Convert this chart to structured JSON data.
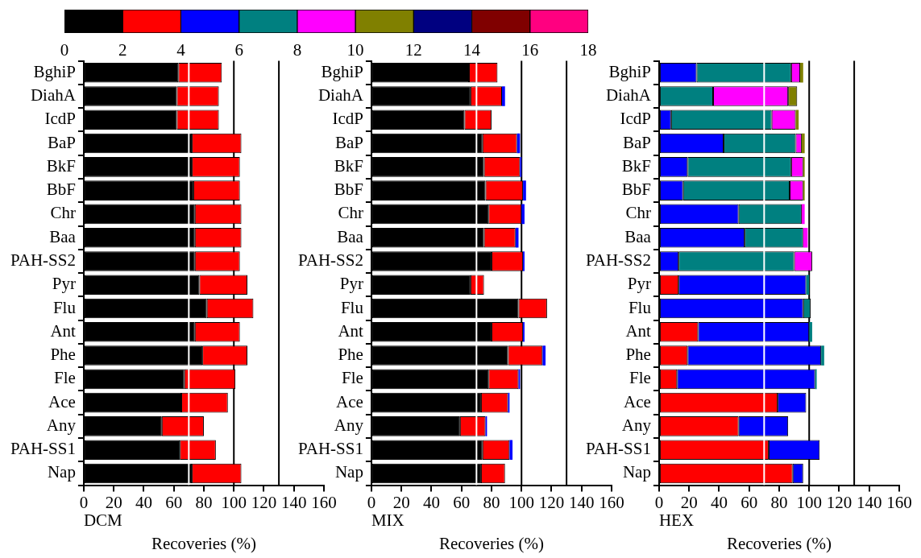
{
  "chart_data": [
    {
      "type": "bar",
      "orientation": "horizontal",
      "stacked": true,
      "categories": [
        null
      ],
      "xlim": [
        0,
        18
      ],
      "xticks": [
        0,
        2,
        4,
        6,
        8,
        10,
        12,
        14,
        16,
        18
      ],
      "tick_labels": "x",
      "series": [
        {
          "color": "#000000",
          "values": [
            2
          ]
        },
        {
          "color": "#ff0000",
          "values": [
            2
          ]
        },
        {
          "color": "#0000ff",
          "values": [
            2
          ]
        },
        {
          "color": "#008080",
          "values": [
            2
          ]
        },
        {
          "color": "#ff00ff",
          "values": [
            2
          ]
        },
        {
          "color": "#808000",
          "values": [
            2
          ]
        },
        {
          "color": "#000080",
          "values": [
            2
          ]
        },
        {
          "color": "#800000",
          "values": [
            2
          ]
        },
        {
          "color": "#ff0080",
          "values": [
            2
          ]
        }
      ]
    },
    {
      "type": "bar",
      "orientation": "horizontal",
      "stacked": true,
      "xlabel": "Recoveries (%)",
      "annotations": [
        "DCM"
      ],
      "categories": [
        "BghiP",
        "DiahA",
        "IcdP",
        "BaP",
        "BkF",
        "BbF",
        "Chr",
        "Baa",
        "PAH-SS2",
        "Pyr",
        "Flu",
        "Ant",
        "Phe",
        "Fle",
        "Ace",
        "Any",
        "PAH-SS1",
        "Nap"
      ],
      "xlim": [
        0,
        160
      ],
      "xticks": [
        0,
        20,
        40,
        60,
        80,
        100,
        120,
        140,
        160
      ],
      "grid": false,
      "legend": false,
      "ref_lines": [
        {
          "axis": "x",
          "value": 100,
          "color": "#000000"
        },
        {
          "axis": "x",
          "value": 130,
          "color": "#000000"
        },
        {
          "axis": "x",
          "value": 70,
          "color": "#ffffff"
        }
      ],
      "series": [
        {
          "color": "#000000",
          "values": [
            63,
            62,
            62,
            72,
            72,
            73,
            74,
            74,
            74,
            77,
            82,
            74,
            79,
            67,
            65,
            52,
            64,
            72
          ]
        },
        {
          "color": "#ff0000",
          "values": [
            29,
            28,
            28,
            33,
            32,
            31,
            31,
            31,
            30,
            32,
            31,
            30,
            30,
            34,
            31,
            28,
            24,
            33
          ]
        }
      ]
    },
    {
      "type": "bar",
      "orientation": "horizontal",
      "stacked": true,
      "xlabel": "Recoveries (%)",
      "annotations": [
        "MIX"
      ],
      "categories": [
        "BghiP",
        "DiahA",
        "IcdP",
        "BaP",
        "BkF",
        "BbF",
        "Chr",
        "Baa",
        "PAH-SS2",
        "Pyr",
        "Flu",
        "Ant",
        "Phe",
        "Fle",
        "Ace",
        "Any",
        "PAH-SS1",
        "Nap"
      ],
      "xlim": [
        0,
        160
      ],
      "xticks": [
        0,
        20,
        40,
        60,
        80,
        100,
        120,
        140,
        160
      ],
      "grid": false,
      "legend": false,
      "ref_lines": [
        {
          "axis": "x",
          "value": 100,
          "color": "#000000"
        },
        {
          "axis": "x",
          "value": 130,
          "color": "#000000"
        },
        {
          "axis": "x",
          "value": 70,
          "color": "#ffffff"
        }
      ],
      "series": [
        {
          "color": "#000000",
          "values": [
            65,
            66,
            62,
            74,
            75,
            76,
            78,
            75,
            80,
            66,
            98,
            80,
            91,
            78,
            73,
            59,
            74,
            73
          ]
        },
        {
          "color": "#ff0000",
          "values": [
            19,
            21,
            18,
            23,
            24,
            25,
            22,
            21,
            21,
            9,
            19,
            21,
            23,
            20,
            18,
            17,
            18,
            16
          ]
        },
        {
          "color": "#0000ff",
          "values": [
            null,
            2,
            null,
            2,
            1,
            2,
            2,
            2,
            1,
            null,
            null,
            1,
            2,
            1,
            1,
            1,
            2,
            null
          ]
        }
      ]
    },
    {
      "type": "bar",
      "orientation": "horizontal",
      "stacked": true,
      "xlabel": "Recoveries (%)",
      "annotations": [
        "HEX"
      ],
      "categories": [
        "BghiP",
        "DiahA",
        "IcdP",
        "BaP",
        "BkF",
        "BbF",
        "Chr",
        "Baa",
        "PAH-SS2",
        "Pyr",
        "Flu",
        "Ant",
        "Phe",
        "Fle",
        "Ace",
        "Any",
        "PAH-SS1",
        "Nap"
      ],
      "xlim": [
        0,
        160
      ],
      "xticks": [
        0,
        20,
        40,
        60,
        80,
        100,
        120,
        140,
        160
      ],
      "grid": false,
      "legend": false,
      "ref_lines": [
        {
          "axis": "x",
          "value": 100,
          "color": "#000000"
        },
        {
          "axis": "x",
          "value": 130,
          "color": "#000000"
        },
        {
          "axis": "x",
          "value": 70,
          "color": "#ffffff"
        }
      ],
      "series": [
        {
          "color": "#ff0000",
          "values": [
            null,
            null,
            null,
            null,
            null,
            null,
            null,
            null,
            null,
            13,
            null,
            26,
            19,
            12,
            79,
            53,
            73,
            89
          ]
        },
        {
          "color": "#0000ff",
          "values": [
            25,
            null,
            8,
            43,
            19,
            16,
            53,
            57,
            13,
            85,
            96,
            74,
            89,
            92,
            19,
            33,
            34,
            7
          ]
        },
        {
          "color": "#008080",
          "values": [
            63,
            36,
            67,
            48,
            69,
            71,
            42,
            39,
            77,
            2,
            5,
            2,
            2,
            1,
            null,
            null,
            null,
            null
          ]
        },
        {
          "color": "#ff00ff",
          "values": [
            6,
            50,
            16,
            4,
            8,
            9,
            2,
            3,
            12,
            null,
            null,
            null,
            null,
            null,
            null,
            null,
            null,
            null
          ]
        },
        {
          "color": "#808000",
          "values": [
            2,
            6,
            2,
            2,
            1,
            1,
            null,
            null,
            null,
            null,
            null,
            null,
            null,
            null,
            null,
            null,
            null,
            null
          ]
        }
      ]
    }
  ]
}
